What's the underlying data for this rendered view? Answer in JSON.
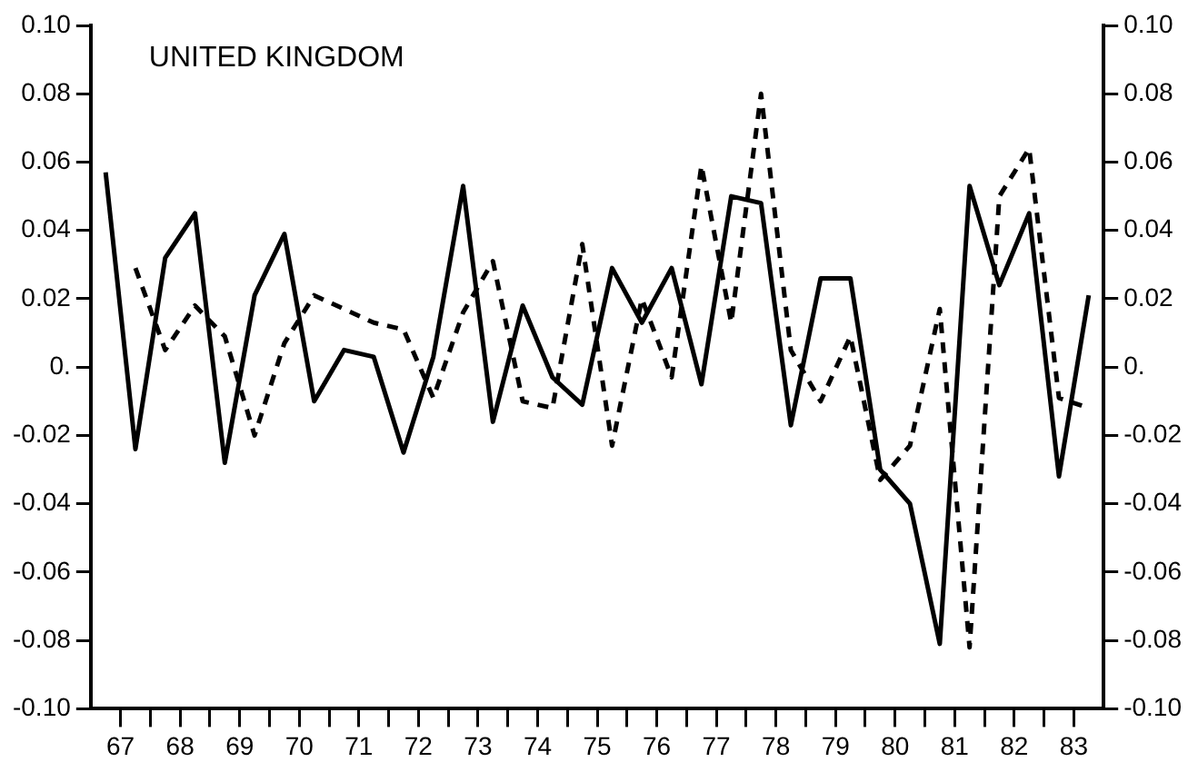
{
  "chart_data": {
    "type": "line",
    "title": "UNITED KINGDOM",
    "x": [
      67.25,
      67.75,
      68.25,
      68.75,
      69.25,
      69.75,
      70.25,
      70.75,
      71.25,
      71.75,
      72.25,
      72.75,
      73.25,
      73.75,
      74.25,
      74.75,
      75.25,
      75.75,
      76.25,
      76.75,
      77.25,
      77.75,
      78.25,
      78.75,
      79.25,
      79.75,
      80.25,
      80.75,
      81.25,
      81.75,
      82.25,
      82.75,
      83.25,
      83.75
    ],
    "series": [
      {
        "color": "#000000",
        "line_style": "solid",
        "values": [
          0.057,
          -0.024,
          0.032,
          0.045,
          -0.028,
          0.021,
          0.039,
          -0.01,
          0.005,
          0.003,
          -0.025,
          0.003,
          0.053,
          -0.016,
          0.018,
          -0.003,
          -0.011,
          0.029,
          0.013,
          0.029,
          -0.005,
          0.05,
          0.048,
          -0.017,
          0.026,
          0.026,
          -0.03,
          -0.04,
          -0.081,
          0.053,
          0.024,
          0.045,
          -0.032,
          0.021
        ]
      },
      {
        "color": "#000000",
        "line_style": "dashed",
        "values": [
          null,
          0.029,
          0.005,
          0.018,
          0.009,
          -0.02,
          0.007,
          0.021,
          0.017,
          0.013,
          0.011,
          -0.009,
          0.016,
          0.031,
          -0.01,
          -0.012,
          0.036,
          -0.023,
          0.02,
          -0.003,
          0.059,
          0.013,
          0.08,
          0.005,
          -0.01,
          0.009,
          -0.033,
          -0.023,
          0.017,
          -0.082,
          0.05,
          0.064,
          -0.009,
          -0.012
        ]
      }
    ],
    "xlim": [
      67,
      84
    ],
    "xticks": [
      {
        "value": 67.5,
        "label": "67"
      },
      {
        "value": 68,
        "label": null
      },
      {
        "value": 68.5,
        "label": "68"
      },
      {
        "value": 69,
        "label": null
      },
      {
        "value": 69.5,
        "label": "69"
      },
      {
        "value": 70,
        "label": null
      },
      {
        "value": 70.5,
        "label": "70"
      },
      {
        "value": 71,
        "label": null
      },
      {
        "value": 71.5,
        "label": "71"
      },
      {
        "value": 72,
        "label": null
      },
      {
        "value": 72.5,
        "label": "72"
      },
      {
        "value": 73,
        "label": null
      },
      {
        "value": 73.5,
        "label": "73"
      },
      {
        "value": 74,
        "label": null
      },
      {
        "value": 74.5,
        "label": "74"
      },
      {
        "value": 75,
        "label": null
      },
      {
        "value": 75.5,
        "label": "75"
      },
      {
        "value": 76,
        "label": null
      },
      {
        "value": 76.5,
        "label": "76"
      },
      {
        "value": 77,
        "label": null
      },
      {
        "value": 77.5,
        "label": "77"
      },
      {
        "value": 78,
        "label": null
      },
      {
        "value": 78.5,
        "label": "78"
      },
      {
        "value": 79,
        "label": null
      },
      {
        "value": 79.5,
        "label": "79"
      },
      {
        "value": 80,
        "label": null
      },
      {
        "value": 80.5,
        "label": "80"
      },
      {
        "value": 81,
        "label": null
      },
      {
        "value": 81.5,
        "label": "81"
      },
      {
        "value": 82,
        "label": null
      },
      {
        "value": 82.5,
        "label": "82"
      },
      {
        "value": 83,
        "label": null
      },
      {
        "value": 83.5,
        "label": "83"
      }
    ],
    "ylim": [
      -0.1,
      0.1
    ],
    "yticks": [
      {
        "value": 0.1,
        "label": "0.10"
      },
      0.08,
      0.06,
      0.04,
      0.02,
      {
        "value": 0,
        "label": "0."
      },
      -0.02,
      -0.04,
      -0.06,
      -0.08,
      {
        "value": -0.1,
        "label": "-0.10"
      }
    ],
    "y2lim": [
      -0.1,
      0.1
    ],
    "y2ticks": [
      {
        "value": 0.1,
        "label": "0.10"
      },
      0.08,
      0.06,
      0.04,
      0.02,
      {
        "value": 0,
        "label": "0."
      },
      -0.02,
      -0.04,
      -0.06,
      -0.08,
      {
        "value": -0.1,
        "label": "-0.10"
      }
    ],
    "grid": false,
    "legend": false,
    "marker": "none"
  }
}
